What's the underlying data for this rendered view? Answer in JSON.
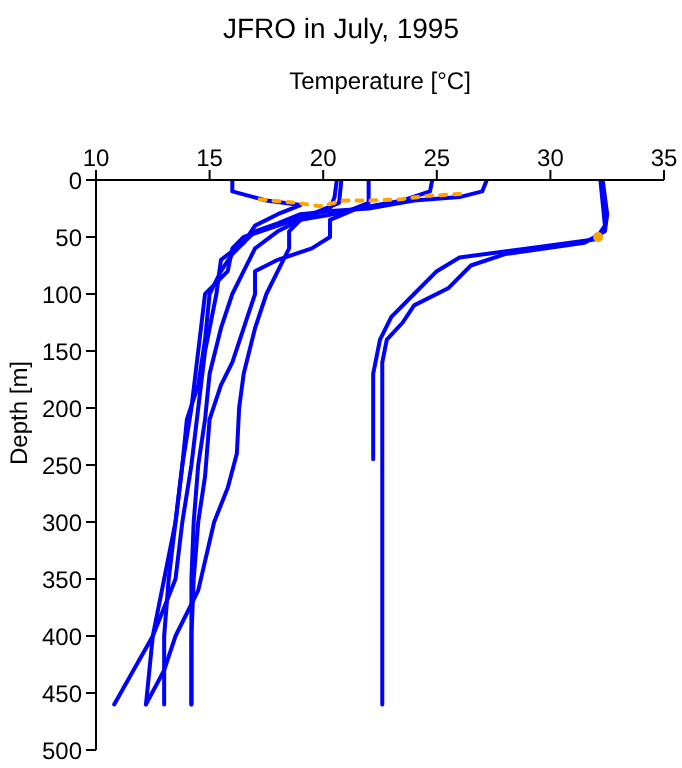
{
  "chart_data": {
    "type": "line",
    "title": "JFRO in July, 1995",
    "xlabel": "Temperature [°C]",
    "ylabel": "Depth [m]",
    "xlim": [
      10,
      35
    ],
    "xticks": [
      10,
      15,
      20,
      25,
      30,
      35
    ],
    "ylim": [
      500,
      0
    ],
    "yticks": [
      0,
      50,
      100,
      150,
      200,
      250,
      300,
      350,
      400,
      450,
      500
    ],
    "marker": "none",
    "line_style": "solid",
    "series": [
      {
        "color": "#0000ff",
        "x": [
          16,
          16,
          17.5,
          19,
          18,
          17,
          16.5,
          15.5,
          15.3,
          14.8,
          14.5,
          14.2,
          13.8,
          13.5,
          12.5,
          10.8
        ],
        "values": [
          0,
          10,
          18,
          22,
          30,
          40,
          55,
          70,
          100,
          150,
          200,
          250,
          300,
          350,
          400,
          460
        ]
      },
      {
        "color": "#0000ff",
        "x": [
          20.6,
          20.5,
          20.3,
          19,
          18,
          17,
          16.5,
          16,
          15.5,
          15,
          14.8,
          14.5,
          14.3,
          14.2,
          14.2,
          14.2
        ],
        "values": [
          0,
          15,
          25,
          35,
          45,
          60,
          80,
          100,
          130,
          170,
          210,
          250,
          300,
          350,
          400,
          460
        ]
      },
      {
        "color": "#0000ff",
        "x": [
          22,
          22,
          21,
          19,
          18.5,
          18.5,
          18,
          17.5,
          17,
          16.5,
          16.3,
          16.2,
          15.8,
          15.2,
          14.5,
          13.5,
          13,
          12.2
        ],
        "values": [
          0,
          20,
          28,
          35,
          45,
          60,
          80,
          100,
          130,
          170,
          200,
          240,
          270,
          300,
          360,
          400,
          430,
          460
        ]
      },
      {
        "color": "#0000ff",
        "x": [
          24.8,
          24.7,
          23.5,
          21.5,
          20.3,
          20.3,
          19.5,
          18,
          17,
          17,
          16.5,
          16,
          15.5,
          15,
          14.8,
          14.5,
          14.3,
          14.2,
          14.2
        ],
        "values": [
          0,
          10,
          18,
          25,
          35,
          50,
          60,
          70,
          80,
          100,
          130,
          160,
          180,
          210,
          260,
          300,
          350,
          400,
          460
        ]
      },
      {
        "color": "#0000ff",
        "x": [
          27.2,
          27,
          26,
          24,
          22,
          20.5,
          19,
          18,
          17,
          16.5,
          16,
          15.5,
          15,
          14.8,
          14.5,
          14,
          13.8,
          13.5,
          13.2,
          13,
          13
        ],
        "values": [
          0,
          10,
          15,
          18,
          25,
          27,
          30,
          38,
          45,
          55,
          65,
          80,
          100,
          140,
          180,
          210,
          250,
          300,
          350,
          400,
          460
        ]
      },
      {
        "color": "#0000ff",
        "x": [
          20.8,
          20.7,
          19.5,
          18,
          16.5,
          16,
          15.8,
          14.8,
          14.5,
          14.2,
          13.8,
          13.5,
          13,
          12.5,
          12.2
        ],
        "values": [
          0,
          20,
          30,
          40,
          50,
          60,
          80,
          100,
          150,
          200,
          250,
          300,
          350,
          400,
          460
        ]
      },
      {
        "color": "#0000ff",
        "x": [
          32.2,
          32.3,
          32.4,
          32,
          29,
          26,
          25,
          24,
          23,
          22.5,
          22.2,
          22.2,
          22.2
        ],
        "values": [
          0,
          20,
          40,
          52,
          60,
          68,
          80,
          100,
          120,
          140,
          170,
          200,
          245
        ]
      },
      {
        "color": "#0000ff",
        "x": [
          32.3,
          32.5,
          32.4,
          31.5,
          28,
          26.5,
          25.5,
          24,
          23.5,
          22.8,
          22.6,
          22.6,
          22.6,
          22.6
        ],
        "values": [
          0,
          30,
          45,
          55,
          65,
          75,
          95,
          110,
          125,
          140,
          160,
          250,
          400,
          460
        ]
      },
      {
        "color": "#ffa500",
        "line_style": "dotted",
        "x": [
          17.2,
          18.8,
          19.9,
          20.9,
          22,
          23.4,
          24.5,
          26.3
        ],
        "values": [
          17,
          20,
          23,
          18,
          18,
          17,
          14,
          12
        ]
      },
      {
        "color": "#ffa500",
        "type": "scatter",
        "marker": "circle",
        "x": [
          32.1
        ],
        "values": [
          50
        ]
      }
    ]
  }
}
